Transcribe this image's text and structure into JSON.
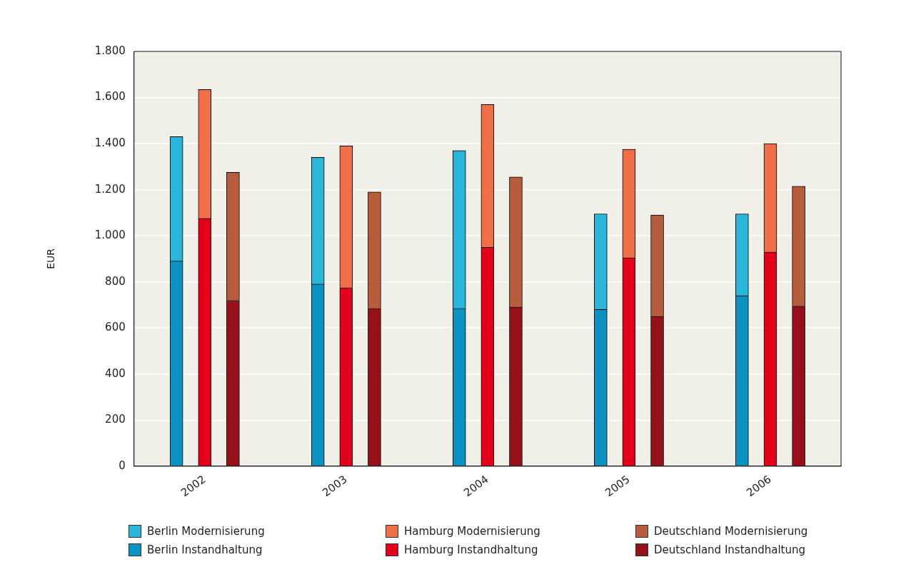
{
  "chart_data": {
    "type": "bar",
    "stacked": true,
    "ylabel": "EUR",
    "categories": [
      null,
      null,
      "2002",
      null,
      null,
      null,
      null,
      "2003",
      null,
      null,
      null,
      null,
      "2004",
      null,
      null,
      null,
      null,
      "2005",
      null,
      null,
      null,
      null,
      "2006",
      null,
      null
    ],
    "series": [
      {
        "name": "Berlin Instandhaltung",
        "color": "#0a93c0",
        "values": [
          null,
          890,
          null,
          null,
          null,
          null,
          790,
          null,
          null,
          null,
          null,
          685,
          null,
          null,
          null,
          null,
          680,
          null,
          null,
          null,
          null,
          740,
          null,
          null,
          null
        ]
      },
      {
        "name": "Berlin Modernisierung",
        "color": "#29b6d8",
        "values": [
          null,
          540,
          null,
          null,
          null,
          null,
          550,
          null,
          null,
          null,
          null,
          685,
          null,
          null,
          null,
          null,
          415,
          null,
          null,
          null,
          null,
          355,
          null,
          null,
          null
        ]
      },
      {
        "name": "Hamburg Instandhaltung",
        "color": "#e2001a",
        "values": [
          null,
          null,
          1075,
          null,
          null,
          null,
          null,
          775,
          null,
          null,
          null,
          null,
          950,
          null,
          null,
          null,
          null,
          905,
          null,
          null,
          null,
          null,
          930,
          null,
          null
        ]
      },
      {
        "name": "Hamburg Modernisierung",
        "color": "#ef7048",
        "values": [
          null,
          null,
          560,
          null,
          null,
          null,
          null,
          615,
          null,
          null,
          null,
          null,
          620,
          null,
          null,
          null,
          null,
          470,
          null,
          null,
          null,
          null,
          470,
          null,
          null
        ]
      },
      {
        "name": "Deutschland Instandhaltung",
        "color": "#951018",
        "values": [
          null,
          null,
          null,
          720,
          null,
          null,
          null,
          null,
          685,
          null,
          null,
          null,
          null,
          690,
          null,
          null,
          null,
          null,
          650,
          null,
          null,
          null,
          null,
          695,
          null
        ]
      },
      {
        "name": "Deutschland Modernisierung",
        "color": "#b85c3e",
        "values": [
          null,
          null,
          null,
          555,
          null,
          null,
          null,
          null,
          505,
          null,
          null,
          null,
          null,
          565,
          null,
          null,
          null,
          null,
          440,
          null,
          null,
          null,
          null,
          520,
          null
        ]
      }
    ],
    "ylim": [
      0,
      1800
    ],
    "yticks": [
      0,
      200,
      400,
      600,
      800,
      {
        "value": 1000,
        "label": "1.000"
      },
      {
        "value": 1200,
        "label": "1.200"
      },
      {
        "value": 1400,
        "label": "1.400"
      },
      {
        "value": 1600,
        "label": "1.600"
      },
      {
        "value": 1800,
        "label": "1.800"
      }
    ],
    "grid": "y",
    "legend": "bottom"
  }
}
